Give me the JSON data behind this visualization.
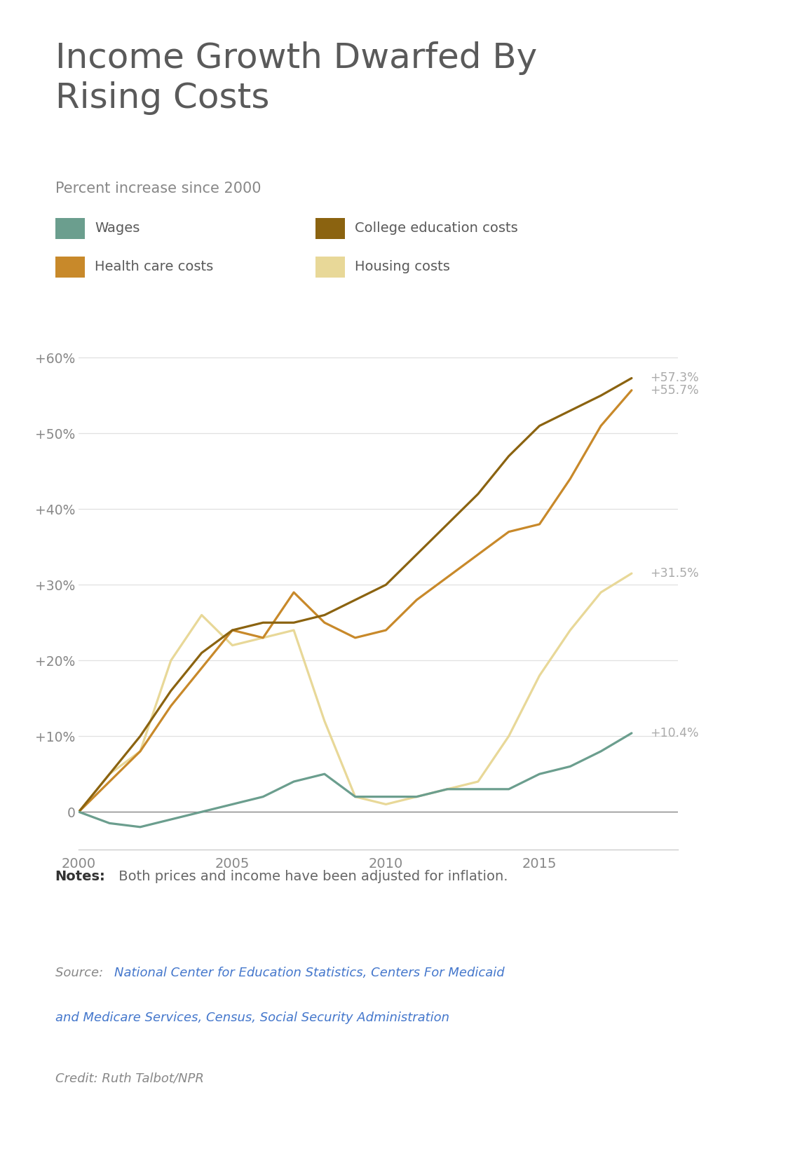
{
  "title": "Income Growth Dwarfed By\nRising Costs",
  "subtitle": "Percent increase since 2000",
  "title_color": "#5a5a5a",
  "subtitle_color": "#888888",
  "background_color": "#ffffff",
  "series": {
    "wages": {
      "label": "Wages",
      "color": "#6b9e8e",
      "years": [
        2000,
        2001,
        2002,
        2003,
        2004,
        2005,
        2006,
        2007,
        2008,
        2009,
        2010,
        2011,
        2012,
        2013,
        2014,
        2015,
        2016,
        2017,
        2018
      ],
      "values": [
        0,
        -1.5,
        -2,
        -1,
        0,
        1,
        2,
        4,
        5,
        2,
        2,
        2,
        3,
        3,
        3,
        5,
        6,
        8,
        10.4
      ]
    },
    "college": {
      "label": "College education costs",
      "color": "#8B6310",
      "years": [
        2000,
        2001,
        2002,
        2003,
        2004,
        2005,
        2006,
        2007,
        2008,
        2009,
        2010,
        2011,
        2012,
        2013,
        2014,
        2015,
        2016,
        2017,
        2018
      ],
      "values": [
        0,
        5,
        10,
        16,
        21,
        24,
        25,
        25,
        26,
        28,
        30,
        34,
        38,
        42,
        47,
        51,
        53,
        55,
        57.3
      ]
    },
    "healthcare": {
      "label": "Health care costs",
      "color": "#c8892a",
      "years": [
        2000,
        2001,
        2002,
        2003,
        2004,
        2005,
        2006,
        2007,
        2008,
        2009,
        2010,
        2011,
        2012,
        2013,
        2014,
        2015,
        2016,
        2017,
        2018
      ],
      "values": [
        0,
        4,
        8,
        14,
        19,
        24,
        23,
        29,
        25,
        23,
        24,
        28,
        31,
        34,
        37,
        38,
        44,
        51,
        55.7
      ]
    },
    "housing": {
      "label": "Housing costs",
      "color": "#e8d898",
      "years": [
        2000,
        2001,
        2002,
        2003,
        2004,
        2005,
        2006,
        2007,
        2008,
        2009,
        2010,
        2011,
        2012,
        2013,
        2014,
        2015,
        2016,
        2017,
        2018
      ],
      "values": [
        0,
        5,
        8,
        20,
        26,
        22,
        23,
        24,
        12,
        2,
        1,
        2,
        3,
        4,
        10,
        18,
        24,
        29,
        31.5
      ]
    }
  },
  "end_label_data": [
    {
      "key": "college",
      "y": 57.3,
      "label": "+57.3%",
      "color": "#aaaaaa"
    },
    {
      "key": "healthcare",
      "y": 55.7,
      "label": "+55.7%",
      "color": "#aaaaaa"
    },
    {
      "key": "housing",
      "y": 31.5,
      "label": "+31.5%",
      "color": "#aaaaaa"
    },
    {
      "key": "wages",
      "y": 10.4,
      "label": "+10.4%",
      "color": "#aaaaaa"
    }
  ],
  "ylim": [
    -5,
    67
  ],
  "yticks": [
    0,
    10,
    20,
    30,
    40,
    50,
    60
  ],
  "ytick_labels": [
    "0",
    "+10%",
    "+20%",
    "+30%",
    "+40%",
    "+50%",
    "+60%"
  ],
  "xlim": [
    2000,
    2019.5
  ],
  "xticks": [
    2000,
    2005,
    2010,
    2015
  ],
  "grid_color": "#e0e0e0",
  "axis_color": "#cccccc",
  "tick_color": "#888888",
  "label_color": "#aaaaaa",
  "notes_bold": "Notes:",
  "notes_text": " Both prices and income have been adjusted for inflation.",
  "notes_color": "#666666",
  "source_label": "Source: ",
  "source_link": "National Center for Education Statistics, Centers For Medicaid\nand Medicare Services, Census, Social Security Administration",
  "source_label_color": "#888888",
  "source_link_color": "#4477cc",
  "credit": "Credit: Ruth Talbot/NPR",
  "credit_color": "#888888"
}
